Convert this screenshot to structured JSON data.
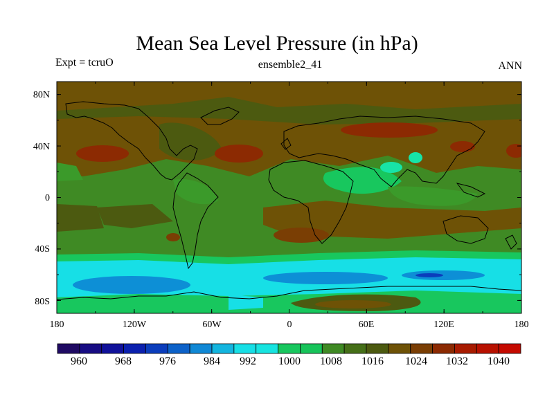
{
  "title": "Mean Sea Level Pressure (in hPa)",
  "left_label": "Expt = tcruO",
  "center_label": "ensemble2_41",
  "right_label": "ANN",
  "map": {
    "lat_ticks": [
      "80N",
      "40N",
      "0",
      "40S",
      "80S"
    ],
    "lon_ticks": [
      "180",
      "120W",
      "60W",
      "0",
      "60E",
      "120E",
      "180"
    ]
  },
  "colorbar": {
    "labels": [
      "960",
      "968",
      "976",
      "984",
      "992",
      "1000",
      "1008",
      "1016",
      "1024",
      "1032",
      "1040"
    ],
    "colors": [
      "#1f0a63",
      "#170c83",
      "#10119a",
      "#0b20ae",
      "#0b3dbc",
      "#0d62c9",
      "#1088d5",
      "#13b5df",
      "#17dfe6",
      "#17e4e0",
      "#18c75e",
      "#17c45a",
      "#3f8a24",
      "#456f18",
      "#4c5a10",
      "#6e5206",
      "#7a3e04",
      "#8c2a02",
      "#a81b00",
      "#b81100",
      "#c50a00"
    ]
  },
  "chart_data": {
    "type": "heatmap",
    "title": "Mean Sea Level Pressure (in hPa)",
    "variable": "Mean Sea Level Pressure",
    "units": "hPa",
    "xlim": [
      -180,
      180
    ],
    "ylim": [
      -90,
      90
    ],
    "x_ticks": [
      -180,
      -120,
      -60,
      0,
      60,
      120,
      180
    ],
    "y_ticks": [
      80,
      40,
      0,
      -40,
      -80
    ],
    "levels": [
      960,
      964,
      968,
      972,
      976,
      980,
      984,
      988,
      992,
      996,
      1000,
      1004,
      1008,
      1012,
      1016,
      1020,
      1024,
      1028,
      1032,
      1036,
      1040
    ],
    "bands": [
      {
        "lat_range": [
          60,
          90
        ],
        "hpa": "1016-1020"
      },
      {
        "lat_range": [
          20,
          60
        ],
        "hpa": "1016-1028"
      },
      {
        "lat_range": [
          -20,
          20
        ],
        "hpa": "1008-1016"
      },
      {
        "lat_range": [
          -45,
          -20
        ],
        "hpa": "1016-1024"
      },
      {
        "lat_range": [
          -55,
          -45
        ],
        "hpa": "1000-1008"
      },
      {
        "lat_range": [
          -75,
          -55
        ],
        "hpa": "984-1000"
      },
      {
        "lat_range": [
          -90,
          -75
        ],
        "hpa": "1000-1016"
      }
    ]
  }
}
